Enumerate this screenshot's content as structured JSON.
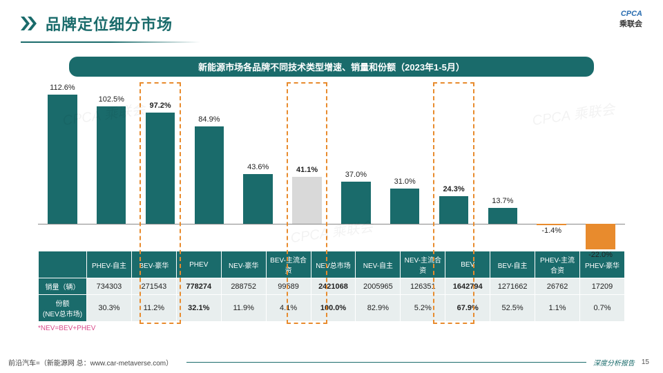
{
  "header": {
    "title": "品牌定位细分市场"
  },
  "logo": {
    "top": "CPCA",
    "bottom": "乘联会"
  },
  "subtitle": "新能源市场各品牌不同技术类型增速、销量和份额（2023年1-5月）",
  "chart": {
    "type": "bar",
    "ymax": 120,
    "ymin_neg": -25,
    "pos_color": "#1a6b6b",
    "neg_color": "#e88b2d",
    "gray_color": "#d9d9d9",
    "label_fontsize": 11,
    "categories": [
      "PHEV-自主",
      "BEV-豪华",
      "PHEV",
      "NEV-豪华",
      "BEV-主流合资",
      "NEV总市场",
      "NEV-自主",
      "NEV-主流合资",
      "BEV",
      "BEV-自主",
      "PHEV-主流合资",
      "PHEV-豪华"
    ],
    "values": [
      112.6,
      102.5,
      97.2,
      84.9,
      43.6,
      41.1,
      37.0,
      31.0,
      24.3,
      13.7,
      -1.4,
      -22.0
    ],
    "highlight_gray_idx": [
      5
    ],
    "highlight_box_idx": [
      2,
      5,
      8
    ],
    "bold_label_idx": [
      2,
      5,
      8
    ]
  },
  "table": {
    "row_headers": [
      "销量（辆）",
      "份额\n(NEV总市场)"
    ],
    "volume": [
      "734303",
      "271543",
      "778274",
      "288752",
      "99589",
      "2421068",
      "2005965",
      "126351",
      "1642794",
      "1271662",
      "26762",
      "17209"
    ],
    "share": [
      "30.3%",
      "11.2%",
      "32.1%",
      "11.9%",
      "4.1%",
      "100.0%",
      "82.9%",
      "5.2%",
      "67.9%",
      "52.5%",
      "1.1%",
      "0.7%"
    ],
    "bold_cols": [
      2,
      5,
      8
    ]
  },
  "note": "*NEV=BEV+PHEV",
  "footer": {
    "left": "前沿汽车=（新能源网 总：www.car-metaverse.com）",
    "right_label": "深度分析报告",
    "page": "15"
  },
  "watermark": "CPCA 乘联会"
}
